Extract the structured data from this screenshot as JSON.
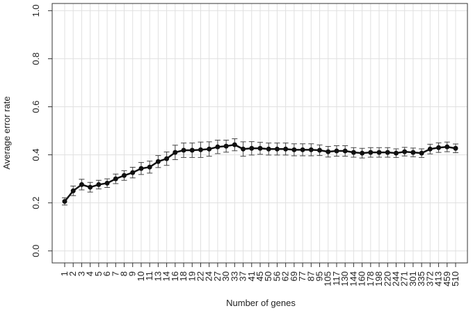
{
  "chart_data": {
    "type": "line",
    "xlabel": "Number of genes",
    "ylabel": "Average error rate",
    "categories": [
      "1",
      "2",
      "3",
      "4",
      "5",
      "6",
      "7",
      "8",
      "9",
      "10",
      "11",
      "13",
      "14",
      "16",
      "18",
      "19",
      "22",
      "24",
      "27",
      "30",
      "33",
      "37",
      "41",
      "45",
      "50",
      "56",
      "62",
      "69",
      "77",
      "87",
      "95",
      "105",
      "117",
      "130",
      "144",
      "160",
      "178",
      "198",
      "220",
      "244",
      "271",
      "301",
      "335",
      "372",
      "413",
      "459",
      "510"
    ],
    "series": [
      {
        "color": "#111111",
        "values": [
          0.206,
          0.25,
          0.276,
          0.265,
          0.276,
          0.282,
          0.3,
          0.314,
          0.326,
          0.343,
          0.349,
          0.372,
          0.384,
          0.41,
          0.419,
          0.419,
          0.421,
          0.424,
          0.433,
          0.436,
          0.442,
          0.424,
          0.427,
          0.427,
          0.424,
          0.424,
          0.424,
          0.421,
          0.421,
          0.421,
          0.419,
          0.413,
          0.416,
          0.416,
          0.41,
          0.407,
          0.41,
          0.41,
          0.41,
          0.407,
          0.413,
          0.41,
          0.407,
          0.424,
          0.43,
          0.433,
          0.427
        ],
        "errors": [
          0.015,
          0.02,
          0.022,
          0.02,
          0.018,
          0.018,
          0.02,
          0.02,
          0.022,
          0.025,
          0.025,
          0.025,
          0.028,
          0.03,
          0.03,
          0.03,
          0.032,
          0.03,
          0.028,
          0.025,
          0.025,
          0.03,
          0.028,
          0.025,
          0.025,
          0.025,
          0.025,
          0.025,
          0.025,
          0.025,
          0.022,
          0.022,
          0.022,
          0.022,
          0.02,
          0.02,
          0.02,
          0.02,
          0.02,
          0.018,
          0.018,
          0.018,
          0.018,
          0.02,
          0.02,
          0.02,
          0.018
        ]
      }
    ],
    "ylim": [
      -0.05,
      1.03
    ],
    "yticks": [
      {
        "value": 0,
        "label": "0.0"
      },
      0.2,
      0.4,
      0.6,
      0.8,
      {
        "value": 1,
        "label": "1.0"
      }
    ],
    "grid": true
  }
}
